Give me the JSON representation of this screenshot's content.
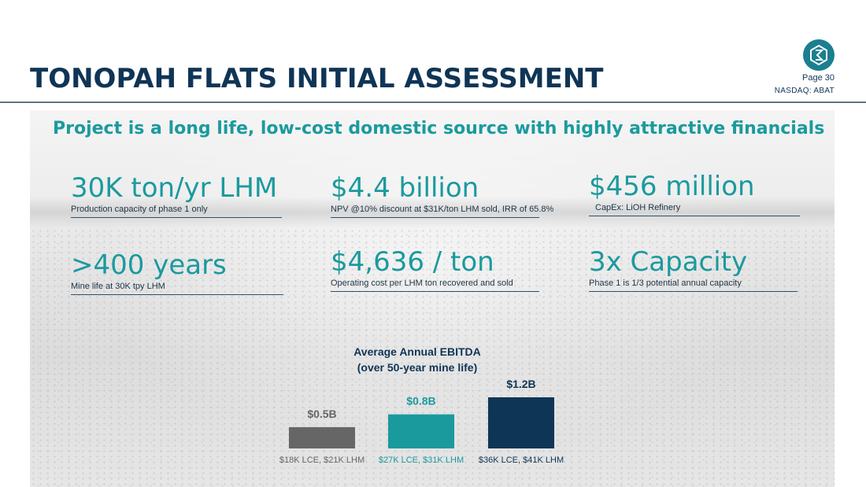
{
  "header": {
    "title": "TONOPAH FLATS INITIAL ASSESSMENT",
    "page_label": "Page 30",
    "ticker": "NASDAQ: ABAT"
  },
  "subtitle": "Project is a long life, low-cost domestic source with highly attractive financials",
  "kpis": [
    {
      "value": "30K ton/yr LHM",
      "desc": "Production capacity of phase 1 only"
    },
    {
      "value": "$4.4 billion",
      "desc": "NPV @10% discount at $31K/ton LHM sold, IRR of 65.8%"
    },
    {
      "value": "$456 million",
      "desc": "CapEx:  LiOH Refinery"
    },
    {
      "value": ">400 years",
      "desc": "Mine life at 30K tpy LHM"
    },
    {
      "value": "$4,636 / ton",
      "desc": "Operating cost per LHM ton recovered and sold"
    },
    {
      "value": "3x Capacity",
      "desc": "Phase 1 is 1/3 potential annual capacity"
    }
  ],
  "colors": {
    "navy": "#0f3556",
    "teal": "#1b9a9e",
    "gray": "#666666"
  },
  "chart_data": {
    "type": "bar",
    "title": "Average Annual EBITDA",
    "subtitle": "(over 50-year mine life)",
    "categories": [
      "$18K LCE, $21K LHM",
      "$27K LCE, $31K LHM",
      "$36K LCE, $41K LHM"
    ],
    "values": [
      0.5,
      0.8,
      1.2
    ],
    "value_labels": [
      "$0.5B",
      "$0.8B",
      "$1.2B"
    ],
    "bar_colors": [
      "#666666",
      "#1b9a9e",
      "#0f3556"
    ],
    "ylim": [
      0,
      1.2
    ],
    "grid": false,
    "legend": "none"
  }
}
